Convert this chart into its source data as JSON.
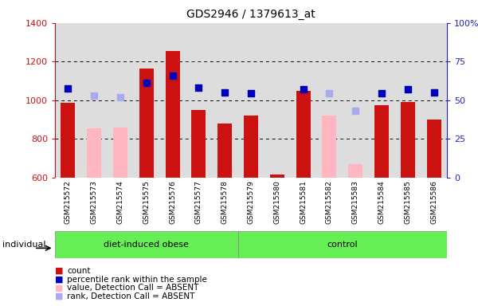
{
  "title": "GDS2946 / 1379613_at",
  "samples": [
    "GSM215572",
    "GSM215573",
    "GSM215574",
    "GSM215575",
    "GSM215576",
    "GSM215577",
    "GSM215578",
    "GSM215579",
    "GSM215580",
    "GSM215581",
    "GSM215582",
    "GSM215583",
    "GSM215584",
    "GSM215585",
    "GSM215586"
  ],
  "n_obese": 7,
  "n_control": 8,
  "count_values": [
    985,
    null,
    null,
    1165,
    1255,
    950,
    880,
    920,
    615,
    1050,
    null,
    null,
    975,
    990,
    900
  ],
  "count_absent": [
    null,
    855,
    860,
    null,
    null,
    null,
    null,
    null,
    null,
    null,
    920,
    670,
    null,
    null,
    null
  ],
  "rank_values": [
    1060,
    null,
    null,
    1090,
    1125,
    1065,
    1040,
    1035,
    null,
    1055,
    null,
    null,
    1035,
    1055,
    1040
  ],
  "rank_absent": [
    null,
    1025,
    1015,
    null,
    null,
    null,
    null,
    null,
    null,
    null,
    1035,
    945,
    null,
    null,
    null
  ],
  "ylim_left": [
    600,
    1400
  ],
  "ylim_right": [
    0,
    100
  ],
  "yticks_left": [
    600,
    800,
    1000,
    1200,
    1400
  ],
  "yticks_right": [
    0,
    25,
    50,
    75,
    100
  ],
  "bar_color_present": "#CC1111",
  "bar_color_absent": "#FFB6C1",
  "dot_color_present": "#0000BB",
  "dot_color_absent": "#AAAAEE",
  "col_bg_color": "#DDDDDD",
  "plot_bg": "#FFFFFF",
  "green_color": "#66EE55",
  "ylabel_left_color": "#CC1111",
  "ylabel_right_color": "#2222BB",
  "grid_color": "#000000",
  "bar_width": 0.55
}
